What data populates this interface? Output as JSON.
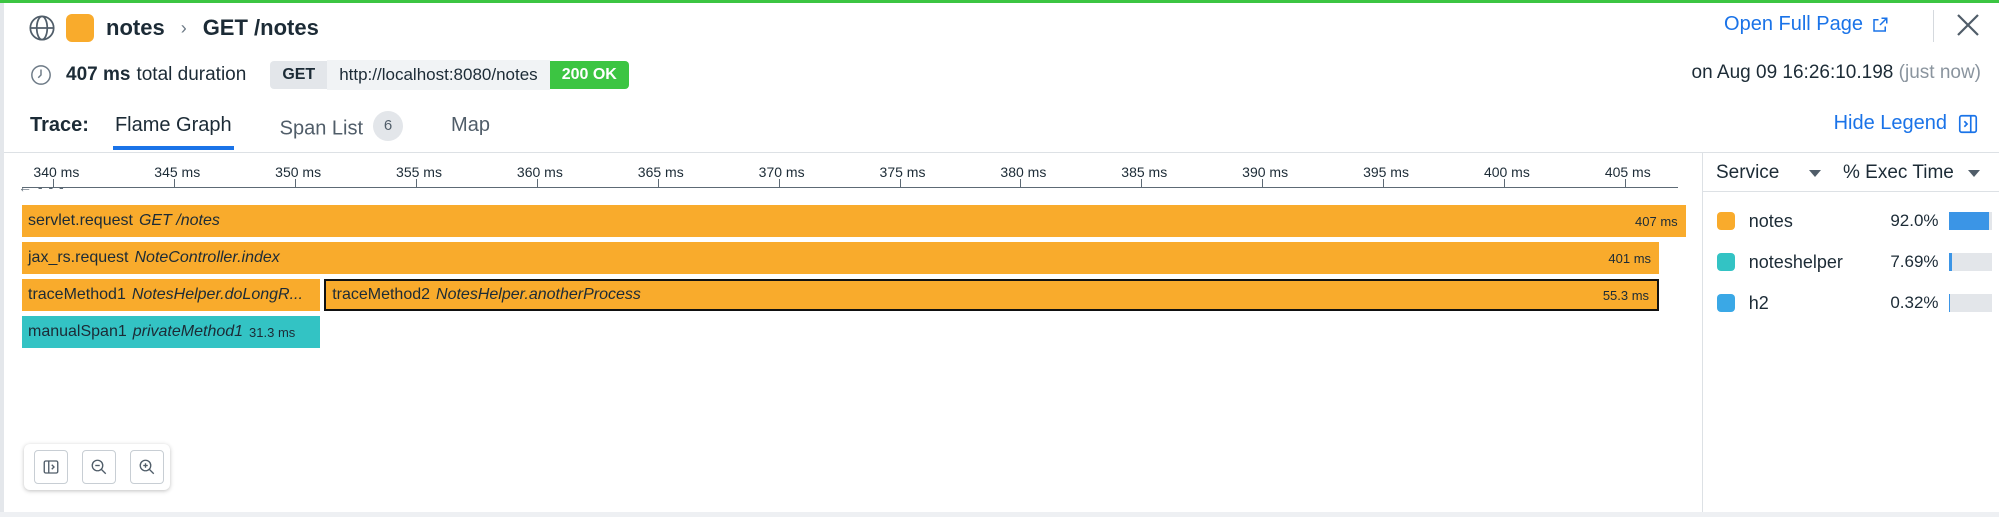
{
  "header": {
    "service": "notes",
    "resource": "GET /notes",
    "open_full_page": "Open Full Page",
    "service_color": "#f9ab2c"
  },
  "summary": {
    "duration_value": "407 ms",
    "duration_label": "total duration",
    "method": "GET",
    "url": "http://localhost:8080/notes",
    "status": "200 OK",
    "timestamp": "on Aug 09 16:26:10.198",
    "relative_time": "(just now)"
  },
  "tabs": {
    "label": "Trace:",
    "items": [
      {
        "label": "Flame Graph",
        "active": true
      },
      {
        "label": "Span List",
        "badge": "6"
      },
      {
        "label": "Map"
      }
    ],
    "hide_legend": "Hide Legend"
  },
  "chart_data": {
    "type": "flame",
    "axis_ticks": [
      "340 ms",
      "345 ms",
      "350 ms",
      "355 ms",
      "360 ms",
      "365 ms",
      "370 ms",
      "375 ms",
      "380 ms",
      "385 ms",
      "390 ms",
      "395 ms",
      "400 ms",
      "405 ms"
    ],
    "axis_start_ms": 338.7,
    "axis_end_ms": 407.2,
    "spans": [
      {
        "depth": 0,
        "operation": "servlet.request",
        "resource": "GET /notes",
        "duration": "407 ms",
        "start_ms": 338.7,
        "end_ms": 407.6,
        "service": "notes",
        "selected": false
      },
      {
        "depth": 1,
        "operation": "jax_rs.request",
        "resource": "NoteController.index",
        "duration": "401 ms",
        "start_ms": 338.7,
        "end_ms": 406.5,
        "service": "notes",
        "selected": false
      },
      {
        "depth": 2,
        "operation": "traceMethod1",
        "resource": "NotesHelper.doLongR...",
        "duration": "",
        "start_ms": 338.7,
        "end_ms": 351.1,
        "service": "notes",
        "selected": false
      },
      {
        "depth": 2,
        "operation": "traceMethod2",
        "resource": "NotesHelper.anotherProcess",
        "duration": "55.3 ms",
        "start_ms": 351.2,
        "end_ms": 406.5,
        "service": "notes",
        "selected": true
      },
      {
        "depth": 3,
        "operation": "manualSpan1",
        "resource": "privateMethod1",
        "duration": "31.3 ms",
        "start_ms": 338.7,
        "end_ms": 351.1,
        "service": "noteshelper",
        "selected": false
      }
    ]
  },
  "legend": {
    "col_service": "Service",
    "col_exec": "% Exec Time",
    "items": [
      {
        "name": "notes",
        "pct": "92.0%",
        "fraction": 0.92,
        "color": "#f9ab2c"
      },
      {
        "name": "noteshelper",
        "pct": "7.69%",
        "fraction": 0.0769,
        "color": "#33c3c4"
      },
      {
        "name": "h2",
        "pct": "0.32%",
        "fraction": 0.0032,
        "color": "#3aa8e6"
      }
    ]
  },
  "colors": {
    "notes": "#f9ab2c",
    "noteshelper": "#33c3c4",
    "accent": "#1a73e8",
    "status_ok": "#3cc542"
  }
}
